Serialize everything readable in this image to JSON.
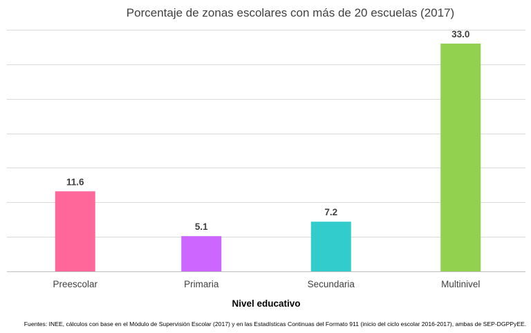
{
  "chart_data": {
    "type": "bar",
    "title": "Porcentaje de zonas escolares con más de 20 escuelas (2017)",
    "xlabel": "Nivel educativo",
    "ylabel": "",
    "categories": [
      "Preescolar",
      "Primaria",
      "Secundaria",
      "Multinivel"
    ],
    "values": [
      11.6,
      5.1,
      7.2,
      33.0
    ],
    "data_labels": [
      "11.6",
      "5.1",
      "7.2",
      "33.0"
    ],
    "colors": [
      "#ff6699",
      "#cc66ff",
      "#33cccc",
      "#92d050"
    ],
    "ylim": [
      0,
      35
    ],
    "gridline_values": [
      0,
      5,
      10,
      15,
      20,
      25,
      30,
      35
    ],
    "grid": true,
    "legend": "none"
  },
  "source_note": "Fuentes: INEE, cálculos con base en el Módulo de Supervisión Escolar (2017) y en las Estadísticas Continuas del Formato 911 (inicio del ciclo escolar 2016-2017), ambas de SEP-DGPPyEE."
}
